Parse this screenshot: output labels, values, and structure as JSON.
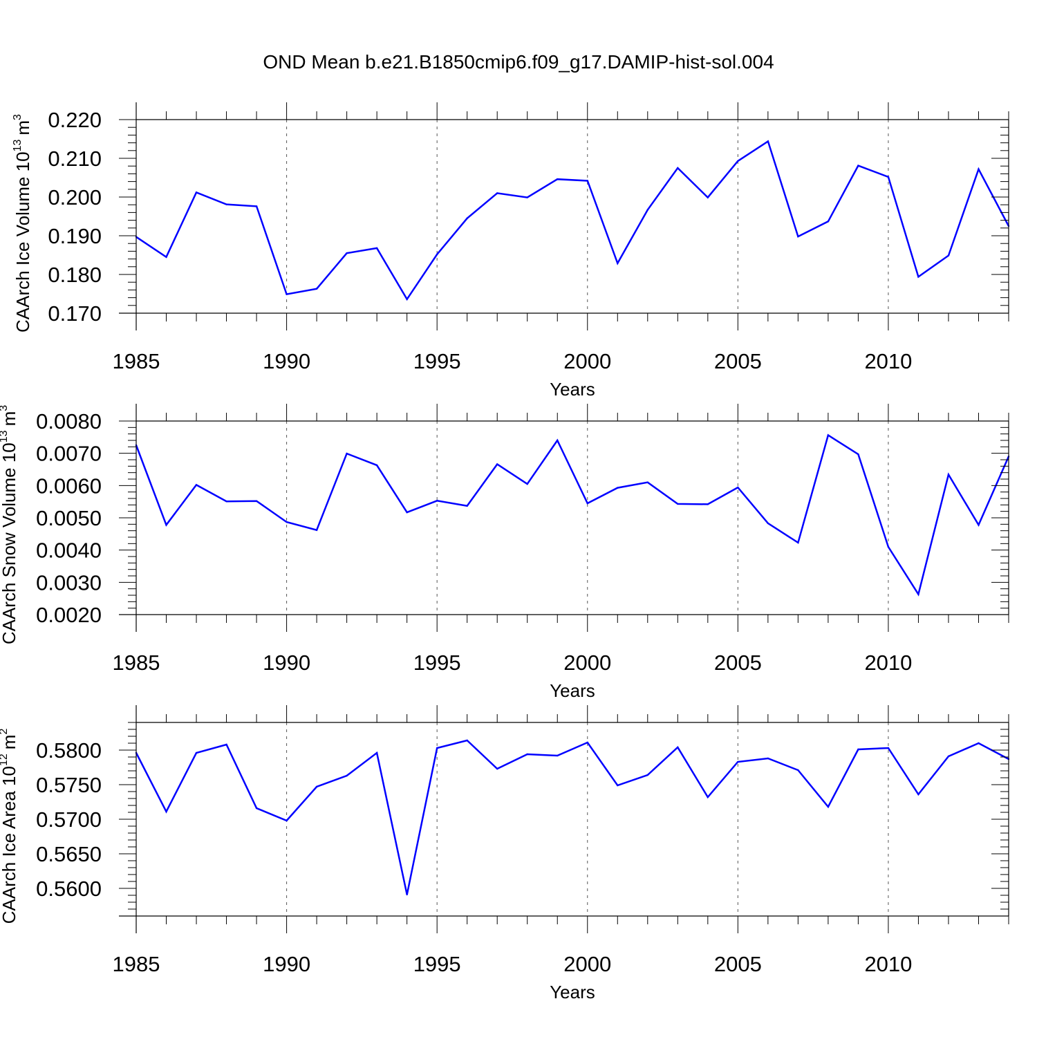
{
  "figure_title": "OND Mean b.e21.B1850cmip6.f09_g17.DAMIP-hist-sol.004",
  "colors": {
    "line": "#0000ff",
    "axis": "#000000",
    "grid": "#555555"
  },
  "chart_data": [
    {
      "type": "line",
      "title": "",
      "xlabel": "Years",
      "ylabel_main": "CAArch Ice Volume 10",
      "ylabel_exp": "13",
      "ylabel_unit": "m",
      "ylabel_unit_exp": "3",
      "xlim": [
        1985,
        2014
      ],
      "ylim": [
        0.17,
        0.22
      ],
      "xticks": [
        1985,
        1990,
        1995,
        2000,
        2005,
        2010
      ],
      "xtick_labels": [
        "1985",
        "1990",
        "1995",
        "2000",
        "2005",
        "2010"
      ],
      "yticks": [
        0.17,
        0.18,
        0.19,
        0.2,
        0.21,
        0.22
      ],
      "ytick_labels": [
        "0.170",
        "0.180",
        "0.190",
        "0.200",
        "0.210",
        "0.220"
      ],
      "grid": "dashed vertical at major x ticks",
      "x": [
        1985,
        1986,
        1987,
        1988,
        1989,
        1990,
        1991,
        1992,
        1993,
        1994,
        1995,
        1996,
        1997,
        1998,
        1999,
        2000,
        2001,
        2002,
        2003,
        2004,
        2005,
        2006,
        2007,
        2008,
        2009,
        2010,
        2011,
        2012,
        2013,
        2014
      ],
      "series": [
        {
          "name": "CAArch Ice Volume",
          "values": [
            0.1897,
            0.1845,
            0.2012,
            0.1981,
            0.1976,
            0.1749,
            0.1763,
            0.1855,
            0.1868,
            0.1736,
            0.1852,
            0.1945,
            0.201,
            0.1999,
            0.2046,
            0.2042,
            0.1829,
            0.1967,
            0.2075,
            0.1999,
            0.2093,
            0.2144,
            0.1898,
            0.1937,
            0.2081,
            0.2052,
            0.1794,
            0.1849,
            0.2072,
            0.1925
          ]
        }
      ]
    },
    {
      "type": "line",
      "title": "",
      "xlabel": "Years",
      "ylabel_main": "CAArch Snow Volume 10",
      "ylabel_exp": "13",
      "ylabel_unit": "m",
      "ylabel_unit_exp": "3",
      "xlim": [
        1985,
        2014
      ],
      "ylim": [
        0.002,
        0.008
      ],
      "xticks": [
        1985,
        1990,
        1995,
        2000,
        2005,
        2010
      ],
      "xtick_labels": [
        "1985",
        "1990",
        "1995",
        "2000",
        "2005",
        "2010"
      ],
      "yticks": [
        0.002,
        0.003,
        0.004,
        0.005,
        0.006,
        0.007,
        0.008
      ],
      "ytick_labels": [
        "0.0020",
        "0.0030",
        "0.0040",
        "0.0050",
        "0.0060",
        "0.0070",
        "0.0080"
      ],
      "grid": "dashed vertical at major x ticks",
      "x": [
        1985,
        1986,
        1987,
        1988,
        1989,
        1990,
        1991,
        1992,
        1993,
        1994,
        1995,
        1996,
        1997,
        1998,
        1999,
        2000,
        2001,
        2002,
        2003,
        2004,
        2005,
        2006,
        2007,
        2008,
        2009,
        2010,
        2011,
        2012,
        2013,
        2014
      ],
      "series": [
        {
          "name": "CAArch Snow Volume",
          "values": [
            0.00725,
            0.00478,
            0.00602,
            0.00551,
            0.00552,
            0.00487,
            0.00462,
            0.00699,
            0.00663,
            0.00517,
            0.00553,
            0.00537,
            0.00666,
            0.00605,
            0.0074,
            0.00545,
            0.00593,
            0.0061,
            0.00543,
            0.00542,
            0.00594,
            0.00483,
            0.00423,
            0.00756,
            0.00697,
            0.0041,
            0.00263,
            0.00634,
            0.00478,
            0.0069
          ]
        }
      ]
    },
    {
      "type": "line",
      "title": "",
      "xlabel": "Years",
      "ylabel_main": "CAArch Ice Area 10",
      "ylabel_exp": "12",
      "ylabel_unit": "m",
      "ylabel_unit_exp": "2",
      "xlim": [
        1985,
        2014
      ],
      "ylim": [
        0.556,
        0.584
      ],
      "xticks": [
        1985,
        1990,
        1995,
        2000,
        2005,
        2010
      ],
      "xtick_labels": [
        "1985",
        "1990",
        "1995",
        "2000",
        "2005",
        "2010"
      ],
      "yticks": [
        0.56,
        0.565,
        0.57,
        0.575,
        0.58
      ],
      "ytick_labels": [
        "0.5600",
        "0.5650",
        "0.5700",
        "0.5750",
        "0.5800"
      ],
      "grid": "dashed vertical at major x ticks",
      "x": [
        1985,
        1986,
        1987,
        1988,
        1989,
        1990,
        1991,
        1992,
        1993,
        1994,
        1995,
        1996,
        1997,
        1998,
        1999,
        2000,
        2001,
        2002,
        2003,
        2004,
        2005,
        2006,
        2007,
        2008,
        2009,
        2010,
        2011,
        2012,
        2013,
        2014
      ],
      "series": [
        {
          "name": "CAArch Ice Area",
          "values": [
            0.5796,
            0.5711,
            0.5796,
            0.5808,
            0.5716,
            0.5698,
            0.5747,
            0.5763,
            0.5796,
            0.5591,
            0.5803,
            0.5814,
            0.5773,
            0.5794,
            0.5792,
            0.5811,
            0.5749,
            0.5764,
            0.5804,
            0.5732,
            0.5783,
            0.5788,
            0.5771,
            0.5718,
            0.5801,
            0.5803,
            0.5736,
            0.5791,
            0.581,
            0.5787
          ]
        }
      ]
    }
  ]
}
